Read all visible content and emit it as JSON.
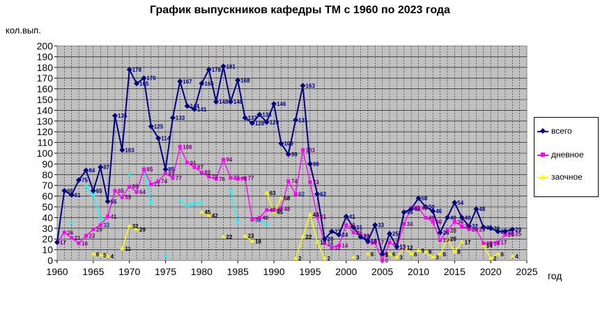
{
  "title": "График выпускников кафедры ТМ с 1960 по 2023 года",
  "chart_data": {
    "type": "line",
    "title": "График выпускников кафедры ТМ с 1960 по 2023 года",
    "ylabel": "кол.вып.",
    "xlabel": "год",
    "xlim": [
      1960,
      2025
    ],
    "ylim": [
      0,
      200
    ],
    "x_ticks": [
      "1960",
      "1965",
      "1970",
      "1975",
      "1980",
      "1985",
      "1990",
      "1995",
      "2000",
      "2005",
      "2010",
      "2015",
      "2020",
      "2025"
    ],
    "y_ticks": [
      "0",
      "10",
      "20",
      "30",
      "40",
      "50",
      "60",
      "70",
      "80",
      "90",
      "100",
      "110",
      "120",
      "130",
      "140",
      "150",
      "160",
      "170",
      "180",
      "190",
      "200"
    ],
    "grid": true,
    "legend_position": "right",
    "x": [
      1960,
      1961,
      1962,
      1963,
      1964,
      1965,
      1966,
      1967,
      1968,
      1969,
      1970,
      1971,
      1972,
      1973,
      1974,
      1975,
      1976,
      1977,
      1978,
      1979,
      1980,
      1981,
      1982,
      1983,
      1984,
      1985,
      1986,
      1987,
      1988,
      1989,
      1990,
      1991,
      1992,
      1993,
      1994,
      1995,
      1996,
      1997,
      1998,
      1999,
      2000,
      2001,
      2002,
      2003,
      2004,
      2005,
      2006,
      2007,
      2008,
      2009,
      2010,
      2011,
      2012,
      2013,
      2014,
      2015,
      2016,
      2017,
      2018,
      2019,
      2020,
      2021,
      2022,
      2023
    ],
    "series": [
      {
        "name": "всего",
        "color": "#000080",
        "marker": "diamond",
        "values": [
          17,
          65,
          61,
          75,
          84,
          65,
          87,
          55,
          135,
          103,
          178,
          165,
          170,
          125,
          114,
          85,
          133,
          167,
          144,
          141,
          165,
          178,
          148,
          181,
          148,
          168,
          133,
          128,
          136,
          129,
          146,
          109,
          99,
          131,
          163,
          90,
          62,
          20,
          27,
          24,
          41,
          31,
          22,
          18,
          33,
          6,
          25,
          13,
          45,
          48,
          58,
          50,
          46,
          26,
          40,
          54,
          40,
          32,
          48,
          31,
          30,
          27,
          27,
          29
        ]
      },
      {
        "name": "дневное",
        "color": "#ff00ff",
        "marker": "square",
        "values": [
          17,
          26,
          21,
          16,
          23,
          29,
          33,
          41,
          65,
          59,
          69,
          64,
          85,
          71,
          74,
          81,
          77,
          106,
          91,
          87,
          82,
          78,
          76,
          94,
          77,
          76,
          77,
          38,
          40,
          47,
          47,
          48,
          74,
          62,
          103,
          73,
          41,
          16,
          12,
          14,
          33,
          26,
          23,
          17,
          17,
          0,
          17,
          12,
          34,
          49,
          49,
          40,
          36,
          19,
          28,
          36,
          32,
          29,
          29,
          16,
          16,
          17,
          24,
          25
        ]
      },
      {
        "name": "заочное",
        "color": "#ffff00",
        "marker": "triangle",
        "values": [
          null,
          null,
          null,
          null,
          null,
          6,
          5,
          4,
          null,
          11,
          32,
          29,
          null,
          null,
          null,
          null,
          null,
          null,
          null,
          null,
          45,
          42,
          null,
          22,
          null,
          null,
          23,
          18,
          null,
          63,
          45,
          58,
          null,
          2,
          22,
          43,
          17,
          2,
          null,
          null,
          null,
          3,
          null,
          6,
          null,
          5,
          6,
          3,
          12,
          6,
          9,
          8,
          3,
          6,
          20,
          8,
          17,
          null,
          null,
          14,
          2,
          6,
          null,
          4
        ]
      },
      {
        "name": "",
        "color": "#00ffff",
        "marker": "x",
        "values": [
          null,
          null,
          35,
          null,
          69,
          61,
          39,
          33,
          null,
          null,
          80,
          null,
          86,
          54,
          null,
          4,
          null,
          56,
          51,
          53,
          54,
          null,
          null,
          null,
          65,
          36,
          null,
          null,
          37,
          34,
          null,
          null,
          null,
          null,
          62,
          null,
          17,
          null,
          14,
          null,
          null,
          null,
          null,
          null,
          null,
          null,
          null,
          null,
          null,
          null,
          null,
          null,
          null,
          null,
          null,
          null,
          null,
          null,
          null,
          null,
          null,
          null,
          null,
          null
        ]
      }
    ],
    "data_labels": {
      "всего": [
        17,
        65,
        61,
        75,
        84,
        65,
        87,
        55,
        135,
        103,
        178,
        165,
        170,
        125,
        114,
        85,
        133,
        167,
        144,
        141,
        165,
        178,
        148,
        181,
        148,
        168,
        133,
        128,
        136,
        129,
        146,
        109,
        99,
        131,
        163,
        90,
        62,
        20,
        27,
        24,
        41,
        31,
        22,
        18,
        33,
        6,
        25,
        13,
        45,
        48,
        58,
        50,
        46,
        26,
        40,
        54,
        40,
        32,
        48,
        31,
        30,
        27,
        27,
        29
      ],
      "дневное": [
        17,
        26,
        21,
        16,
        23,
        29,
        33,
        41,
        65,
        59,
        69,
        64,
        85,
        71,
        74,
        81,
        77,
        106,
        91,
        87,
        82,
        78,
        76,
        94,
        77,
        76,
        77,
        38,
        40,
        47,
        47,
        48,
        74,
        62,
        103,
        73,
        41,
        16,
        12,
        14,
        33,
        26,
        23,
        17,
        17,
        0,
        17,
        12,
        34,
        49,
        49,
        40,
        36,
        19,
        28,
        36,
        32,
        29,
        29,
        16,
        16,
        17,
        24,
        25
      ],
      "заочное": [
        null,
        null,
        null,
        null,
        null,
        6,
        5,
        4,
        null,
        11,
        32,
        29,
        null,
        null,
        null,
        null,
        null,
        null,
        null,
        null,
        45,
        42,
        null,
        22,
        null,
        null,
        23,
        18,
        null,
        63,
        45,
        58,
        null,
        2,
        22,
        43,
        17,
        2,
        null,
        null,
        null,
        3,
        null,
        6,
        null,
        5,
        6,
        3,
        12,
        6,
        9,
        8,
        3,
        6,
        20,
        8,
        17,
        null,
        null,
        14,
        2,
        6,
        null,
        4
      ]
    }
  },
  "legend": {
    "items": [
      {
        "label": "всего",
        "color": "#000080"
      },
      {
        "label": "дневное",
        "color": "#ff00ff"
      },
      {
        "label": "заочное",
        "color": "#ffff00"
      }
    ]
  }
}
